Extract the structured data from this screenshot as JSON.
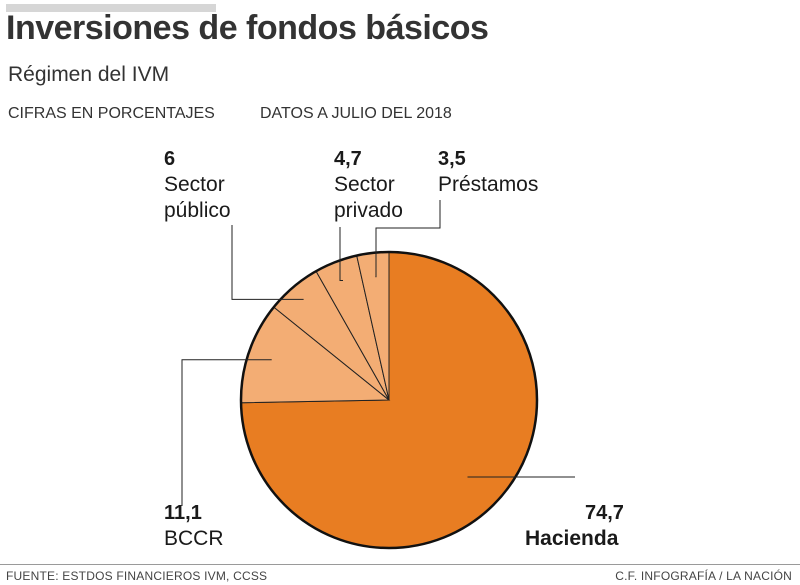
{
  "header": {
    "title": "Inversiones de fondos básicos",
    "subtitle": "Régimen del IVM",
    "units_note": "CIFRAS EN PORCENTAJES",
    "date_note": "DATOS A JULIO DEL 2018"
  },
  "labels": {
    "hacienda": {
      "value": "74,7",
      "name": "Hacienda"
    },
    "bccr": {
      "value": "11,1",
      "name": "BCCR"
    },
    "publico": {
      "value": "6",
      "name_line1": "Sector",
      "name_line2": "público"
    },
    "privado": {
      "value": "4,7",
      "name_line1": "Sector",
      "name_line2": "privado"
    },
    "prestamos": {
      "value": "3,5",
      "name": "Préstamos"
    }
  },
  "chart_data": {
    "type": "pie",
    "categories": [
      "Hacienda",
      "BCCR",
      "Sector público",
      "Sector privado",
      "Préstamos"
    ],
    "values": [
      74.7,
      11.1,
      6,
      4.7,
      3.5
    ],
    "colors": [
      "#e87d22",
      "#f3ad74",
      "#f3ad74",
      "#f3ad74",
      "#f3ad74"
    ],
    "start": "12 o'clock",
    "direction": "clockwise"
  },
  "footer": {
    "source": "FUENTE: ESTDOS FINANCIEROS IVM, CCSS",
    "credit": "C.F. INFOGRAFÍA / LA NACIÓN"
  }
}
